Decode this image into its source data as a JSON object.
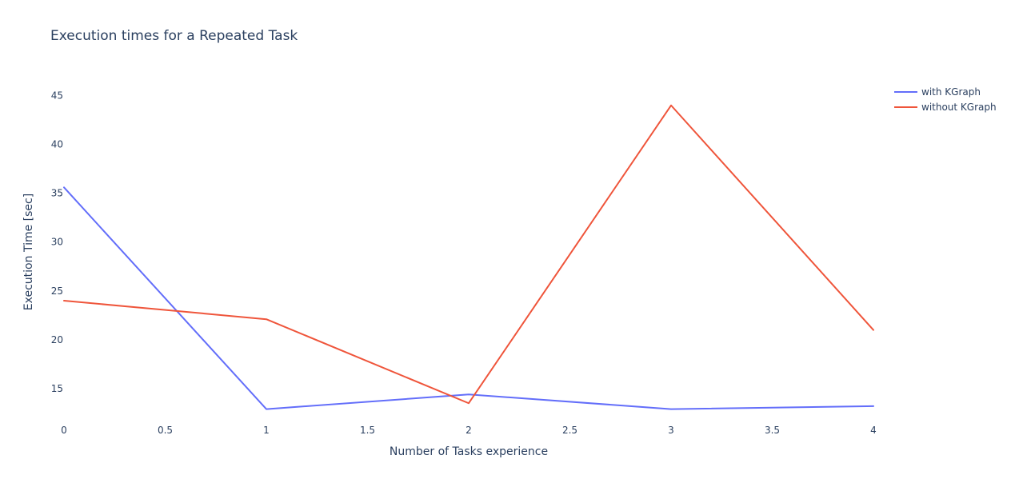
{
  "chart_data": {
    "type": "line",
    "title": "Execution times for a Repeated Task",
    "xlabel": "Number of Tasks experience",
    "ylabel": "Execution Time [sec]",
    "x": [
      0,
      1,
      2,
      3,
      4
    ],
    "xlim": [
      0,
      4
    ],
    "ylim": [
      11.8,
      46.6
    ],
    "x_ticks": [
      "0",
      "0.5",
      "1",
      "1.5",
      "2",
      "2.5",
      "3",
      "3.5",
      "4"
    ],
    "y_ticks": [
      "15",
      "20",
      "25",
      "30",
      "35",
      "40",
      "45"
    ],
    "grid": false,
    "legend_position": "top-right",
    "series": [
      {
        "name": "with KGraph",
        "color": "#636efa",
        "values": [
          35.6,
          12.9,
          14.4,
          12.9,
          13.2
        ]
      },
      {
        "name": "without KGraph",
        "color": "#ef553b",
        "values": [
          24.0,
          22.1,
          13.5,
          44.0,
          21.0
        ]
      }
    ]
  }
}
